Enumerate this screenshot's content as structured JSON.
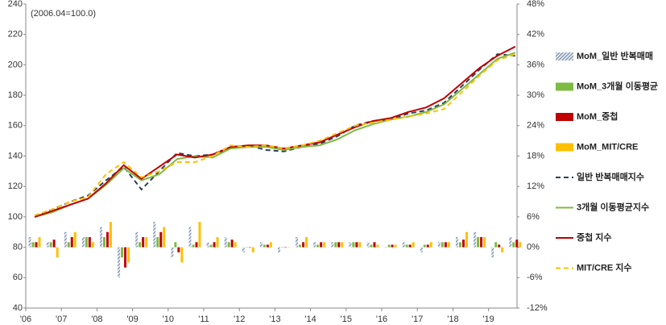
{
  "chart_data": {
    "type": "combo",
    "annotation": "(2006.04=100.0)",
    "x": [
      2006.25,
      2006.75,
      2007.25,
      2007.75,
      2008.25,
      2008.75,
      2009.25,
      2009.75,
      2010.25,
      2010.75,
      2011.25,
      2011.75,
      2012.25,
      2012.75,
      2013.25,
      2013.75,
      2014.25,
      2014.75,
      2015.25,
      2015.75,
      2016.25,
      2016.75,
      2017.25,
      2017.75,
      2018.25,
      2018.75,
      2019.25,
      2019.75
    ],
    "xlim": [
      2006,
      2019.8
    ],
    "xticks": [
      {
        "value": 2006,
        "label": "'06"
      },
      {
        "value": 2007,
        "label": "'07"
      },
      {
        "value": 2008,
        "label": "'08"
      },
      {
        "value": 2009,
        "label": "'09"
      },
      {
        "value": 2010,
        "label": "'10"
      },
      {
        "value": 2011,
        "label": "'11"
      },
      {
        "value": 2012,
        "label": "'12"
      },
      {
        "value": 2013,
        "label": "'13"
      },
      {
        "value": 2014,
        "label": "'14"
      },
      {
        "value": 2015,
        "label": "'15"
      },
      {
        "value": 2016,
        "label": "'16"
      },
      {
        "value": 2017,
        "label": "'17"
      },
      {
        "value": 2018,
        "label": "'18"
      },
      {
        "value": 2019,
        "label": "'19"
      }
    ],
    "ylim": [
      40,
      240
    ],
    "yticks": [
      40,
      60,
      80,
      100,
      120,
      140,
      160,
      180,
      200,
      220,
      240
    ],
    "y2lim": [
      -12,
      48
    ],
    "y2ticks": [
      {
        "value": -12,
        "label": "-12%"
      },
      {
        "value": -6,
        "label": "-6%"
      },
      {
        "value": 0,
        "label": "0%"
      },
      {
        "value": 6,
        "label": "6%"
      },
      {
        "value": 12,
        "label": "12%"
      },
      {
        "value": 18,
        "label": "18%"
      },
      {
        "value": 24,
        "label": "24%"
      },
      {
        "value": 30,
        "label": "30%"
      },
      {
        "value": 36,
        "label": "36%"
      },
      {
        "value": 42,
        "label": "42%"
      },
      {
        "value": 48,
        "label": "48%"
      }
    ],
    "series": [
      {
        "name": "MoM_일반 반복매매",
        "type": "bar",
        "hatched": true,
        "axis": "y2",
        "color": "#5a6f8e",
        "values": [
          2,
          1,
          3,
          2,
          4,
          -6,
          3,
          5,
          -2,
          4,
          1,
          2,
          -1,
          1,
          -1,
          2,
          1,
          1,
          1,
          1,
          0,
          1,
          -1,
          1,
          2,
          3,
          -2,
          2
        ]
      },
      {
        "name": "MoM_3개월 이동평균",
        "type": "bar",
        "axis": "y2",
        "color": "#7dbb42",
        "values": [
          1,
          1,
          1,
          2,
          2,
          -2,
          1,
          2,
          1,
          0.5,
          0.5,
          1,
          0,
          0.5,
          0,
          0.5,
          0.5,
          1,
          1,
          0.5,
          0.5,
          0.5,
          0.5,
          1,
          1,
          2,
          1,
          1
        ]
      },
      {
        "name": "MoM_중첩",
        "type": "bar",
        "axis": "y2",
        "color": "#c00000",
        "values": [
          1,
          1.5,
          2,
          2,
          3,
          -4,
          2,
          3,
          -1,
          1,
          1,
          1.5,
          0,
          0.5,
          0,
          1,
          1,
          1,
          1,
          1,
          0.5,
          0.5,
          0.5,
          1,
          1.5,
          2,
          0.5,
          1.5
        ]
      },
      {
        "name": "MoM_MIT/CRE",
        "type": "bar",
        "axis": "y2",
        "color": "#ffc000",
        "values": [
          2,
          -2,
          3,
          1,
          5,
          -3,
          2,
          4,
          -3,
          5,
          2,
          1,
          -1,
          1,
          0,
          2,
          1,
          1,
          1,
          0.5,
          0.5,
          1,
          1,
          1,
          3,
          2,
          -1,
          1
        ]
      },
      {
        "name": "일반 반복매매지수",
        "type": "line",
        "dashed": true,
        "color": "#2f3f57",
        "values": [
          100,
          105,
          110,
          114,
          124,
          133,
          118,
          130,
          142,
          140,
          141,
          145,
          147,
          144,
          143,
          146,
          148,
          153,
          160,
          163,
          164,
          168,
          170,
          175,
          186,
          197,
          207,
          206
        ]
      },
      {
        "name": "3개월 이동평균지수",
        "type": "line",
        "color": "#7dbb42",
        "values": [
          100,
          103,
          108,
          112,
          121,
          132,
          124,
          128,
          138,
          140,
          139,
          145,
          146,
          146,
          144,
          146,
          147,
          151,
          157,
          161,
          164,
          166,
          169,
          174,
          184,
          194,
          204,
          208
        ]
      },
      {
        "name": "중첩 지수",
        "type": "line",
        "color": "#c00000",
        "values": [
          100,
          104,
          108,
          112,
          122,
          134,
          125,
          133,
          141,
          139,
          141,
          146,
          147,
          147,
          145,
          147,
          149,
          154,
          159,
          163,
          165,
          169,
          172,
          178,
          188,
          198,
          206,
          212
        ]
      },
      {
        "name": "MIT/CRE 지수",
        "type": "line",
        "dashed": true,
        "color": "#ffc000",
        "values": [
          101,
          105,
          110,
          113,
          128,
          136,
          126,
          130,
          136,
          136,
          140,
          147,
          146,
          147,
          145,
          147,
          150,
          155,
          160,
          162,
          164,
          166,
          168,
          171,
          182,
          193,
          203,
          207
        ]
      }
    ]
  }
}
